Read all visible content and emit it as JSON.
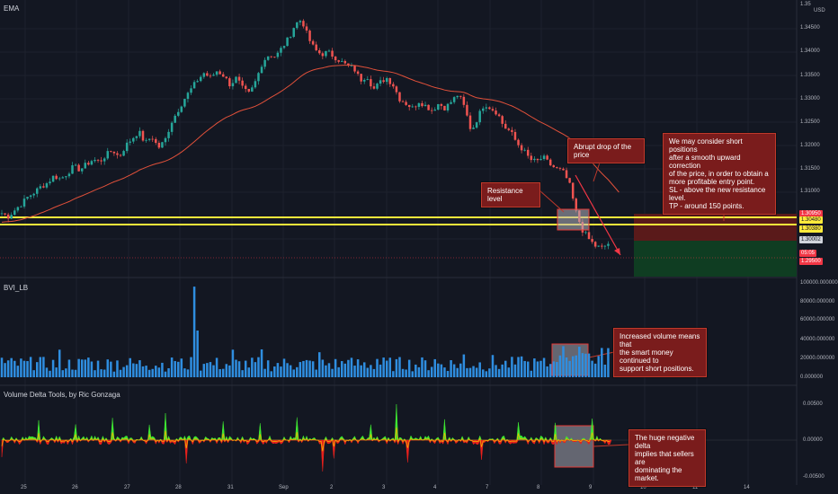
{
  "panes": {
    "main": {
      "title": "EMA",
      "currency": "USD"
    },
    "volume": {
      "title": "BVI_LB"
    },
    "delta": {
      "title": "Volume Delta Tools, by Ric Gonzaga"
    }
  },
  "price_axis": [
    "1.35",
    "1.34500",
    "1.34000",
    "1.33500",
    "1.33000",
    "1.32500",
    "1.32000",
    "1.31500",
    "1.31000",
    "1.30000",
    "1.29500"
  ],
  "price_tags": [
    {
      "value": "1.30950",
      "bg": "#f23645",
      "fg": "#ffffff"
    },
    {
      "value": "1.30480",
      "bg": "#ffeb3b",
      "fg": "#131722"
    },
    {
      "value": "1.30380",
      "bg": "#ffeb3b",
      "fg": "#131722"
    },
    {
      "value": "1.30002",
      "bg": "#d1d4dc",
      "fg": "#131722"
    },
    {
      "value": "05:05",
      "bg": "#f23645",
      "fg": "#ffffff"
    },
    {
      "value": "1.29500",
      "bg": "#f23645",
      "fg": "#ffffff"
    }
  ],
  "volume_axis": [
    "100000.000000",
    "80000.000000",
    "60000.000000",
    "40000.000000",
    "20000.000000",
    "0.000000"
  ],
  "delta_axis": [
    "0.00500",
    "0.00000",
    "-0.00500"
  ],
  "dates": [
    "25",
    "26",
    "27",
    "28",
    "31",
    "Sep",
    "2",
    "3",
    "4",
    "7",
    "8",
    "9",
    "10",
    "11",
    "14"
  ],
  "annotations": {
    "abrupt_drop": "Abrupt drop of the price",
    "resistance": "Resistance level",
    "short_positions": "We may consider short positions\nafter a smooth upward correction\nof the price, in order to obtain a\nmore profitable entry point.\nSL - above the new resistance level.\nTP - around 150 points.",
    "volume_note": "Increased volume means that\nthe smart money continued to\nsupport short positions.",
    "delta_note": "The huge negative delta\nimplies that sellers are\ndominating the market."
  },
  "colors": {
    "background": "#131722",
    "up_candle": "#26a69a",
    "down_candle": "#ef5350",
    "ema": "#e0503a",
    "resistance_line": "#ffeb3b",
    "volume_bar": "#2f8ee0",
    "delta_up": "#3ee832",
    "delta_down": "#e8201c",
    "stop_zone": "#5a1a1a",
    "target_zone": "#0f3d22"
  },
  "chart_data": {
    "type": "candlestick",
    "pair_scale": "1.29500 - 1.35000",
    "close_series": [
      1.3055,
      1.3048,
      1.3062,
      1.3075,
      1.309,
      1.31,
      1.3112,
      1.312,
      1.3135,
      1.3128,
      1.314,
      1.3155,
      1.3148,
      1.316,
      1.317,
      1.3165,
      1.318,
      1.319,
      1.3175,
      1.32,
      1.3215,
      1.323,
      1.3205,
      1.322,
      1.3195,
      1.321,
      1.325,
      1.3275,
      1.33,
      1.332,
      1.334,
      1.3355,
      1.3345,
      1.336,
      1.335,
      1.333,
      1.3345,
      1.332,
      1.331,
      1.334,
      1.338,
      1.3395,
      1.339,
      1.341,
      1.343,
      1.346,
      1.347,
      1.343,
      1.3405,
      1.3395,
      1.34,
      1.339,
      1.338,
      1.337,
      1.3365,
      1.334,
      1.335,
      1.332,
      1.3335,
      1.3345,
      1.333,
      1.33,
      1.329,
      1.328,
      1.3295,
      1.3285,
      1.3275,
      1.329,
      1.328,
      1.3295,
      1.331,
      1.328,
      1.323,
      1.326,
      1.329,
      1.328,
      1.327,
      1.324,
      1.323,
      1.3205,
      1.319,
      1.317,
      1.3165,
      1.3175,
      1.316,
      1.315,
      1.3145,
      1.312,
      1.306,
      1.302,
      1.3,
      1.2985,
      1.298,
      1.299
    ]
  }
}
